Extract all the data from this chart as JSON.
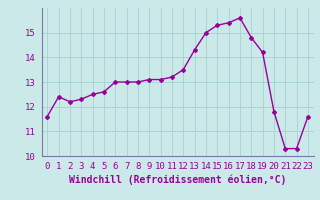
{
  "x": [
    0,
    1,
    2,
    3,
    4,
    5,
    6,
    7,
    8,
    9,
    10,
    11,
    12,
    13,
    14,
    15,
    16,
    17,
    18,
    19,
    20,
    21,
    22,
    23
  ],
  "y": [
    11.6,
    12.4,
    12.2,
    12.3,
    12.5,
    12.6,
    13.0,
    13.0,
    13.0,
    13.1,
    13.1,
    13.2,
    13.5,
    14.3,
    15.0,
    15.3,
    15.4,
    15.6,
    14.8,
    14.2,
    11.8,
    10.3,
    10.3,
    11.6
  ],
  "line_color": "#990099",
  "marker": "D",
  "marker_size": 2.0,
  "bg_color": "#cce9e9",
  "grid_color": "#aad4d4",
  "xlabel": "Windchill (Refroidissement éolien,°C)",
  "ylim": [
    10,
    16
  ],
  "xlim": [
    -0.5,
    23.5
  ],
  "yticks": [
    10,
    11,
    12,
    13,
    14,
    15
  ],
  "xticks": [
    0,
    1,
    2,
    3,
    4,
    5,
    6,
    7,
    8,
    9,
    10,
    11,
    12,
    13,
    14,
    15,
    16,
    17,
    18,
    19,
    20,
    21,
    22,
    23
  ],
  "tick_fontsize": 6.5,
  "xlabel_fontsize": 7.0,
  "line_width": 1.0,
  "spine_color": "#7777aa"
}
